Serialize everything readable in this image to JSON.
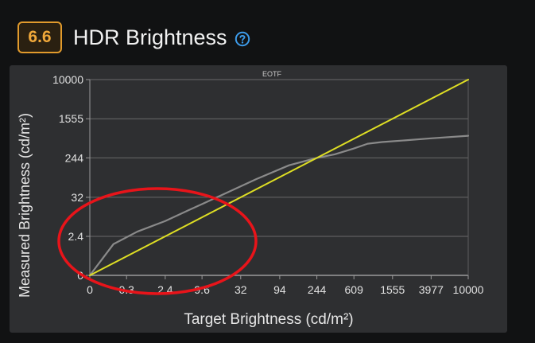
{
  "header": {
    "score": "6.6",
    "title": "HDR Brightness"
  },
  "icons": {
    "help": "question-circle-icon"
  },
  "colors": {
    "badge_border": "#e19a2c",
    "badge_text": "#f0a83a",
    "help_icon": "#3d9be9",
    "target_line": "#dede24",
    "measured_line": "#8a8a8a",
    "annotation_circle": "#e8141a"
  },
  "chart_data": {
    "type": "line",
    "title": "EOTF",
    "xlabel": "Target Brightness (cd/m²)",
    "ylabel": "Measured Brightness (cd/m²)",
    "x_ticks": [
      "0",
      "0.3",
      "2.4",
      "9.6",
      "32",
      "94",
      "244",
      "609",
      "1555",
      "3977",
      "10000"
    ],
    "y_ticks": [
      "0",
      "2.4",
      "32",
      "244",
      "1555",
      "10000"
    ],
    "scale": "PQ (perceptual quantizer) on both axes",
    "xlim": [
      0,
      10000
    ],
    "ylim": [
      0,
      10000
    ],
    "grid": true,
    "series": [
      {
        "color": "#dede24",
        "x": [
          0,
          10000
        ],
        "y": [
          0,
          10000
        ]
      },
      {
        "color": "#8a8a8a",
        "x": [
          0,
          0.1,
          0.6,
          2.4,
          6,
          18,
          50,
          120,
          244,
          380,
          600,
          850,
          1200,
          2000,
          3977,
          10000
        ],
        "y": [
          0,
          1.2,
          3.5,
          7.5,
          15,
          36,
          85,
          170,
          244,
          290,
          380,
          480,
          520,
          560,
          620,
          700
        ]
      }
    ],
    "annotation": "red-ellipse-around-low-end"
  }
}
